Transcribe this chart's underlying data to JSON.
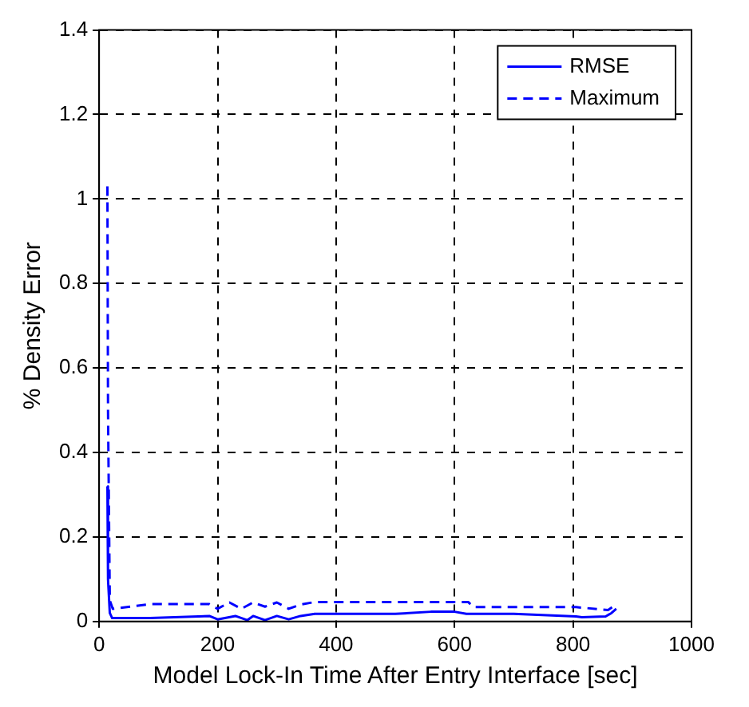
{
  "chart_data": {
    "type": "line",
    "xlabel": "Model Lock-In Time After Entry Interface [sec]",
    "ylabel": "% Density Error",
    "xlim": [
      0,
      1000
    ],
    "xticks": [
      0,
      200,
      400,
      600,
      800,
      1000
    ],
    "ylim": [
      0,
      1.4
    ],
    "yticks": [
      0,
      0.2,
      0.4,
      0.6,
      0.8,
      1,
      1.2,
      1.4
    ],
    "grid": true,
    "legend": "top right",
    "marker": "none",
    "series": [
      {
        "name": "RMSE",
        "color": "#0000ff",
        "line_style": "solid",
        "x": [
          14,
          15,
          18,
          22,
          86,
          186,
          200,
          230,
          250,
          260,
          280,
          300,
          320,
          340,
          364,
          500,
          560,
          600,
          620,
          700,
          805,
          815,
          855,
          865,
          873
        ],
        "values": [
          0.32,
          0.1,
          0.02,
          0.008,
          0.008,
          0.013,
          0.005,
          0.013,
          0.003,
          0.013,
          0.003,
          0.013,
          0.005,
          0.013,
          0.018,
          0.018,
          0.023,
          0.023,
          0.018,
          0.018,
          0.012,
          0.01,
          0.012,
          0.02,
          0.03
        ]
      },
      {
        "name": "Maximum",
        "color": "#0000ff",
        "line_style": "dashed",
        "x": [
          14,
          15,
          18,
          23,
          86,
          186,
          200,
          220,
          240,
          260,
          280,
          300,
          320,
          340,
          364,
          623,
          632,
          805,
          859,
          873
        ],
        "values": [
          1.03,
          0.5,
          0.05,
          0.03,
          0.041,
          0.041,
          0.03,
          0.045,
          0.03,
          0.045,
          0.035,
          0.045,
          0.03,
          0.04,
          0.046,
          0.046,
          0.034,
          0.034,
          0.027,
          0.04
        ]
      }
    ]
  }
}
